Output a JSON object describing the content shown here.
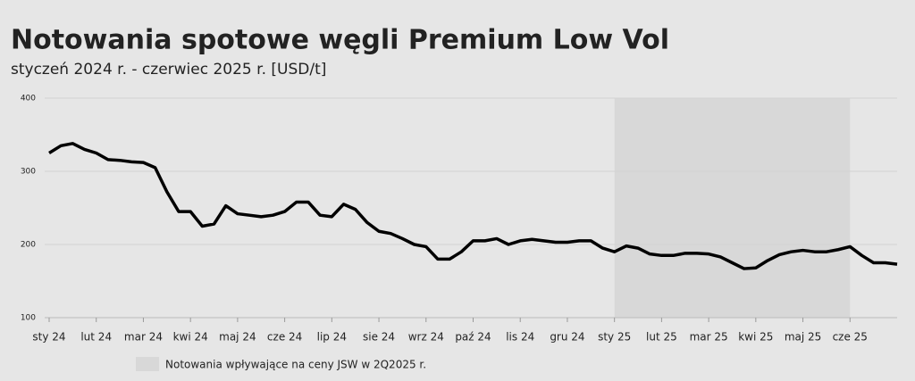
{
  "chart_data": {
    "type": "line",
    "title": "Notowania spotowe węgli Premium Low Vol",
    "subtitle": "styczeń 2024 r. - czerwiec 2025 r. [USD/t]",
    "x": [
      0,
      0.25,
      0.5,
      0.75,
      1,
      1.25,
      1.5,
      1.75,
      2,
      2.25,
      2.5,
      2.75,
      3,
      3.25,
      3.5,
      3.75,
      4,
      4.25,
      4.5,
      4.75,
      5,
      5.25,
      5.5,
      5.75,
      6,
      6.25,
      6.5,
      6.75,
      7,
      7.25,
      7.5,
      7.75,
      8,
      8.25,
      8.5,
      8.75,
      9,
      9.25,
      9.5,
      9.75,
      10,
      10.25,
      10.5,
      10.75,
      11,
      11.25,
      11.5,
      11.75,
      12,
      12.25,
      12.5,
      12.75,
      13,
      13.25,
      13.5,
      13.75,
      14,
      14.25,
      14.5,
      14.75,
      15,
      15.25,
      15.5,
      15.75,
      16,
      16.25,
      16.5,
      16.75,
      17,
      17.25,
      17.5,
      17.75,
      18
    ],
    "series": [
      {
        "color": "#000000",
        "values": [
          325,
          335,
          338,
          330,
          325,
          316,
          315,
          313,
          312,
          305,
          272,
          245,
          245,
          225,
          228,
          253,
          242,
          240,
          238,
          240,
          245,
          258,
          258,
          240,
          238,
          255,
          248,
          230,
          218,
          215,
          208,
          200,
          197,
          180,
          180,
          190,
          205,
          205,
          208,
          200,
          205,
          207,
          205,
          203,
          203,
          205,
          205,
          195,
          190,
          198,
          195,
          187,
          185,
          185,
          188,
          188,
          187,
          183,
          175,
          167,
          168,
          178,
          186,
          190,
          192,
          190,
          190,
          193,
          197,
          185,
          175,
          175,
          173
        ]
      }
    ],
    "xlim": [
      0,
      18
    ],
    "xticks": [
      {
        "value": 0,
        "label": "sty 24"
      },
      {
        "value": 1,
        "label": "lut 24"
      },
      {
        "value": 2,
        "label": "mar 24"
      },
      {
        "value": 3,
        "label": "kwi 24"
      },
      {
        "value": 4,
        "label": "maj 24"
      },
      {
        "value": 5,
        "label": "cze 24"
      },
      {
        "value": 6,
        "label": "lip 24"
      },
      {
        "value": 7,
        "label": "sie 24"
      },
      {
        "value": 8,
        "label": "wrz 24"
      },
      {
        "value": 9,
        "label": "paź 24"
      },
      {
        "value": 10,
        "label": "lis 24"
      },
      {
        "value": 11,
        "label": "gru 24"
      },
      {
        "value": 12,
        "label": "sty 25"
      },
      {
        "value": 13,
        "label": "lut 25"
      },
      {
        "value": 14,
        "label": "mar 25"
      },
      {
        "value": 15,
        "label": "kwi 25"
      },
      {
        "value": 16,
        "label": "maj 25"
      },
      {
        "value": 17,
        "label": "cze 25"
      }
    ],
    "ylim": [
      100,
      400
    ],
    "yticks": [
      100,
      200,
      300,
      400
    ],
    "grid": true,
    "highlight": {
      "x": [
        12,
        17
      ],
      "label": "Notowania wpływające na ceny JSW w 2Q2025 r.",
      "color": "#d8d8d8"
    }
  }
}
